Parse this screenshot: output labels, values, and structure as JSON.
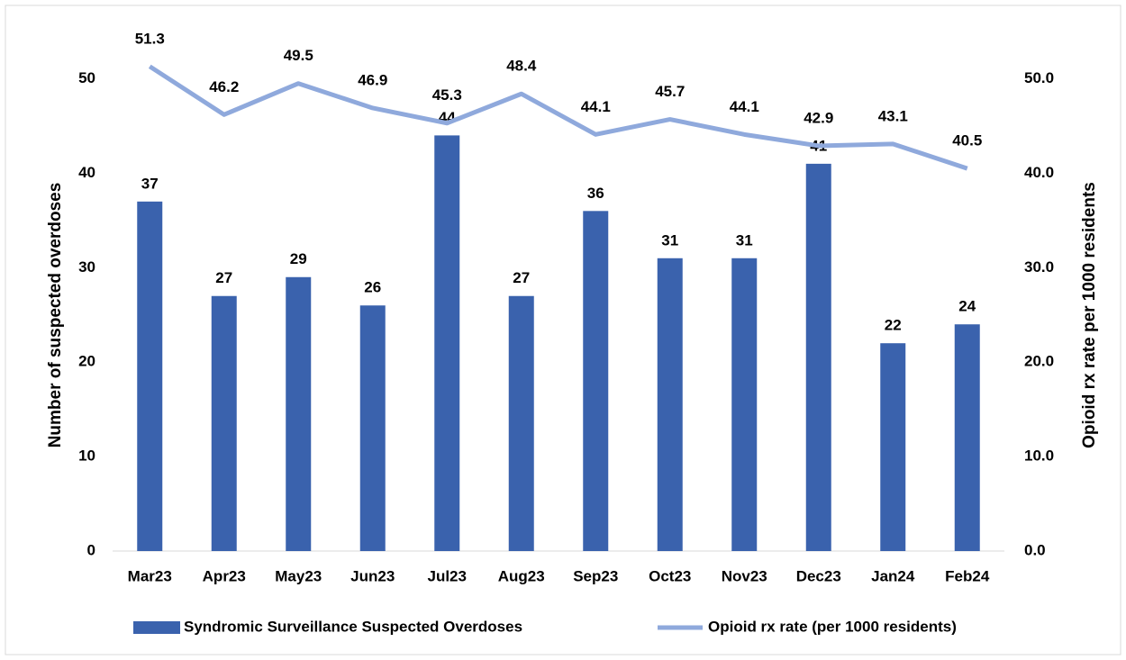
{
  "chart_data": {
    "type": "bar",
    "categories": [
      "Mar23",
      "Apr23",
      "May23",
      "Jun23",
      "Jul23",
      "Aug23",
      "Sep23",
      "Oct23",
      "Nov23",
      "Dec23",
      "Jan24",
      "Feb24"
    ],
    "series": [
      {
        "name": "Syndromic Surveillance Suspected Overdoses",
        "type": "bar",
        "color": "#3a62ad",
        "values": [
          37,
          27,
          29,
          26,
          44,
          27,
          36,
          31,
          31,
          41,
          22,
          24
        ]
      },
      {
        "name": "Opioid rx rate (per 1000 residents)",
        "type": "line",
        "axis": "y2",
        "color": "#8fa9dc",
        "values": [
          51.3,
          46.2,
          49.5,
          46.9,
          45.3,
          48.4,
          44.1,
          45.7,
          44.1,
          42.9,
          43.1,
          40.5
        ]
      }
    ],
    "ylabel": "Number of suspected overdoses",
    "y2label": "Opioid rx rate per 1000 residents",
    "ylim": [
      0,
      55
    ],
    "yticks": [
      0,
      10,
      20,
      30,
      40,
      50
    ],
    "y2lim": [
      0,
      55
    ],
    "y2ticks": [
      {
        "value": 0,
        "label": "0.0"
      },
      {
        "value": 10,
        "label": "10.0"
      },
      {
        "value": 20,
        "label": "20.0"
      },
      {
        "value": 30,
        "label": "30.0"
      },
      {
        "value": 40,
        "label": "40.0"
      },
      {
        "value": 50,
        "label": "50.0"
      }
    ],
    "grid": false,
    "legend": "bottom"
  }
}
